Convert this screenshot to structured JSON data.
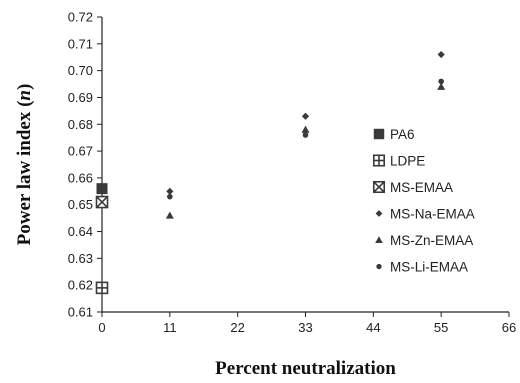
{
  "chart_data": {
    "type": "scatter",
    "title": "",
    "xlabel": "Percent neutralization",
    "ylabel_main": "Power law index (",
    "ylabel_var": "n",
    "ylabel_end": ")",
    "xlim": [
      0,
      66
    ],
    "ylim": [
      0.61,
      0.72
    ],
    "x_ticks": [
      0,
      11,
      22,
      33,
      44,
      55,
      66
    ],
    "x_tick_labels": [
      "0",
      "11",
      "22",
      "33",
      "44",
      "55",
      "66"
    ],
    "y_ticks": [
      0.61,
      0.62,
      0.63,
      0.64,
      0.65,
      0.66,
      0.67,
      0.68,
      0.69,
      0.7,
      0.71,
      0.72
    ],
    "y_tick_labels": [
      "0.61",
      "0.62",
      "0.63",
      "0.64",
      "0.65",
      "0.66",
      "0.67",
      "0.68",
      "0.69",
      "0.70",
      "0.71",
      "0.72"
    ],
    "grid": false,
    "legend_position": "right",
    "series": [
      {
        "name": "PA6",
        "marker": "filled-square",
        "points": [
          [
            0,
            0.656
          ]
        ]
      },
      {
        "name": "LDPE",
        "marker": "plus-square",
        "points": [
          [
            0,
            0.619
          ]
        ]
      },
      {
        "name": "MS-EMAA",
        "marker": "x-square",
        "points": [
          [
            0,
            0.651
          ]
        ]
      },
      {
        "name": "MS-Na-EMAA",
        "marker": "diamond",
        "points": [
          [
            11,
            0.655
          ],
          [
            33,
            0.683
          ],
          [
            55,
            0.706
          ]
        ]
      },
      {
        "name": "MS-Zn-EMAA",
        "marker": "triangle",
        "points": [
          [
            11,
            0.646
          ],
          [
            33,
            0.678
          ],
          [
            55,
            0.694
          ]
        ]
      },
      {
        "name": "MS-Li-EMAA",
        "marker": "circle",
        "points": [
          [
            11,
            0.653
          ],
          [
            33,
            0.676
          ],
          [
            55,
            0.696
          ]
        ]
      }
    ]
  }
}
